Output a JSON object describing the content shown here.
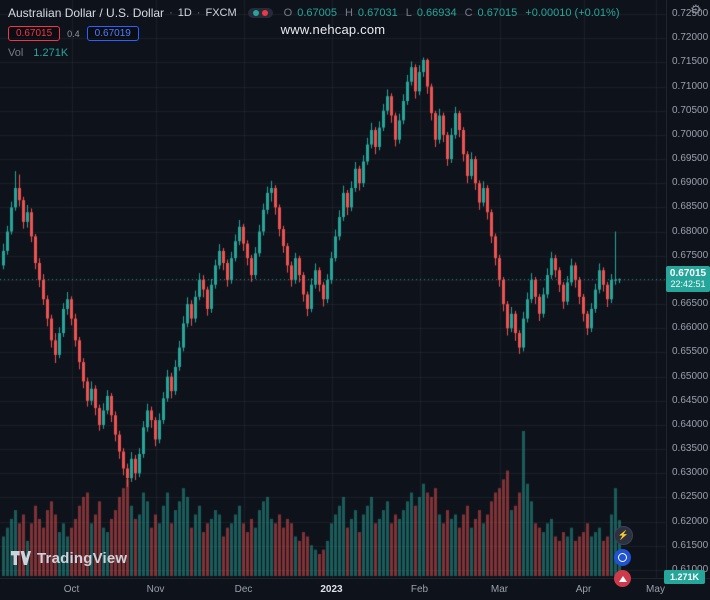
{
  "header": {
    "symbol_title": "Australian Dollar / U.S. Dollar",
    "separator": "·",
    "timeframe": "1D",
    "exchange": "FXCM",
    "ohlc": {
      "o_label": "O",
      "o": "0.67005",
      "h_label": "H",
      "h": "0.67031",
      "l_label": "L",
      "l": "0.66934",
      "c_label": "C",
      "c": "0.67015",
      "change": "+0.00010 (+0.01%)"
    },
    "sell_price": "0.67015",
    "spread": "0.4",
    "buy_price": "0.67019",
    "vol_label": "Vol",
    "vol_value": "1.271K"
  },
  "watermark": "www.nehcap.com",
  "price_tag": {
    "price": "0.67015",
    "countdown": "22:42:51"
  },
  "volume_tag": "1.271K",
  "logo_text": "TradingView",
  "colors": {
    "background": "#0e121b",
    "up": "#26a69a",
    "down": "#ef5350",
    "grid": "rgba(255,255,255,0.05)",
    "last_price_line": "rgba(38,166,154,0.8)",
    "sell_red": "#f23645",
    "buy_blue": "#2962ff",
    "text_primary": "#d1d4dc",
    "text_secondary": "#9598a1"
  },
  "axes": {
    "price_ticks": [
      "0.72500",
      "0.72000",
      "0.71500",
      "0.71000",
      "0.70500",
      "0.70000",
      "0.69500",
      "0.69000",
      "0.68500",
      "0.68000",
      "0.67500",
      "0.67000",
      "0.66500",
      "0.66000",
      "0.65500",
      "0.65000",
      "0.64500",
      "0.64000",
      "0.63500",
      "0.63000",
      "0.62500",
      "0.62000",
      "0.61500",
      "0.61000"
    ],
    "time_labels": [
      {
        "label": "Oct",
        "i": 17,
        "emphasis": false
      },
      {
        "label": "Nov",
        "i": 38,
        "emphasis": false
      },
      {
        "label": "Dec",
        "i": 60,
        "emphasis": false
      },
      {
        "label": "2023",
        "i": 82,
        "emphasis": true
      },
      {
        "label": "Feb",
        "i": 104,
        "emphasis": false
      },
      {
        "label": "Mar",
        "i": 124,
        "emphasis": false
      },
      {
        "label": "Apr",
        "i": 145,
        "emphasis": false
      },
      {
        "label": "May",
        "i": 163,
        "emphasis": false
      }
    ]
  },
  "chart_data": {
    "type": "candlestick",
    "title": "Australian Dollar / U.S. Dollar · 1D · FXCM",
    "visible_price_range": [
      0.61,
      0.725
    ],
    "price_tick_step": 0.005,
    "last_price": 0.67015,
    "volume_units": "K",
    "volume_max_scale": 3.3,
    "candles_format": [
      "open",
      "high",
      "low",
      "close",
      "volume"
    ],
    "candles": [
      [
        0.673,
        0.6775,
        0.6722,
        0.676,
        0.9
      ],
      [
        0.676,
        0.6812,
        0.6752,
        0.68,
        1.1
      ],
      [
        0.68,
        0.6862,
        0.6794,
        0.685,
        1.3
      ],
      [
        0.685,
        0.6925,
        0.6843,
        0.689,
        1.5
      ],
      [
        0.689,
        0.6918,
        0.6852,
        0.6865,
        1.2
      ],
      [
        0.6865,
        0.6872,
        0.6806,
        0.682,
        1.4
      ],
      [
        0.682,
        0.6855,
        0.6808,
        0.684,
        0.8
      ],
      [
        0.684,
        0.6848,
        0.6778,
        0.679,
        1.2
      ],
      [
        0.679,
        0.6795,
        0.6722,
        0.6735,
        1.6
      ],
      [
        0.6735,
        0.6745,
        0.6685,
        0.67,
        1.3
      ],
      [
        0.67,
        0.6712,
        0.6648,
        0.666,
        1.1
      ],
      [
        0.666,
        0.6668,
        0.6604,
        0.662,
        1.5
      ],
      [
        0.662,
        0.6628,
        0.656,
        0.6575,
        1.7
      ],
      [
        0.6575,
        0.659,
        0.6528,
        0.6545,
        1.4
      ],
      [
        0.6545,
        0.6602,
        0.6538,
        0.659,
        1.0
      ],
      [
        0.659,
        0.6652,
        0.6582,
        0.664,
        1.2
      ],
      [
        0.664,
        0.6675,
        0.6628,
        0.666,
        0.9
      ],
      [
        0.666,
        0.6666,
        0.6606,
        0.662,
        1.1
      ],
      [
        0.662,
        0.663,
        0.6562,
        0.6575,
        1.3
      ],
      [
        0.6575,
        0.6582,
        0.6515,
        0.653,
        1.6
      ],
      [
        0.653,
        0.6538,
        0.6476,
        0.649,
        1.8
      ],
      [
        0.649,
        0.6498,
        0.6438,
        0.645,
        1.9
      ],
      [
        0.645,
        0.649,
        0.6441,
        0.6475,
        1.2
      ],
      [
        0.6475,
        0.6482,
        0.642,
        0.6435,
        1.4
      ],
      [
        0.6435,
        0.6442,
        0.6388,
        0.64,
        1.7
      ],
      [
        0.64,
        0.6445,
        0.6392,
        0.643,
        1.1
      ],
      [
        0.643,
        0.6472,
        0.6422,
        0.646,
        1.0
      ],
      [
        0.646,
        0.6466,
        0.6406,
        0.642,
        1.3
      ],
      [
        0.642,
        0.6428,
        0.6366,
        0.638,
        1.5
      ],
      [
        0.638,
        0.6388,
        0.633,
        0.6345,
        1.8
      ],
      [
        0.6345,
        0.6352,
        0.6296,
        0.631,
        2.0
      ],
      [
        0.631,
        0.632,
        0.6272,
        0.629,
        2.2
      ],
      [
        0.629,
        0.6344,
        0.6282,
        0.633,
        1.6
      ],
      [
        0.633,
        0.6338,
        0.6286,
        0.63,
        1.3
      ],
      [
        0.63,
        0.6352,
        0.6292,
        0.634,
        1.4
      ],
      [
        0.634,
        0.6408,
        0.6332,
        0.6395,
        1.9
      ],
      [
        0.6395,
        0.6444,
        0.6386,
        0.643,
        1.7
      ],
      [
        0.643,
        0.6438,
        0.6394,
        0.641,
        1.1
      ],
      [
        0.641,
        0.6416,
        0.6356,
        0.637,
        1.4
      ],
      [
        0.637,
        0.6424,
        0.6362,
        0.641,
        1.2
      ],
      [
        0.641,
        0.6468,
        0.6402,
        0.6455,
        1.6
      ],
      [
        0.6455,
        0.6514,
        0.6448,
        0.65,
        1.9
      ],
      [
        0.65,
        0.6508,
        0.6455,
        0.647,
        1.2
      ],
      [
        0.647,
        0.6534,
        0.6462,
        0.652,
        1.5
      ],
      [
        0.652,
        0.6574,
        0.6512,
        0.656,
        1.7
      ],
      [
        0.656,
        0.6625,
        0.6552,
        0.661,
        2.0
      ],
      [
        0.661,
        0.6664,
        0.6602,
        0.665,
        1.8
      ],
      [
        0.665,
        0.6658,
        0.6605,
        0.662,
        1.1
      ],
      [
        0.662,
        0.6678,
        0.6612,
        0.6665,
        1.4
      ],
      [
        0.6665,
        0.6714,
        0.6658,
        0.67,
        1.6
      ],
      [
        0.67,
        0.671,
        0.6664,
        0.668,
        1.0
      ],
      [
        0.668,
        0.6686,
        0.6626,
        0.664,
        1.2
      ],
      [
        0.664,
        0.6702,
        0.6632,
        0.669,
        1.3
      ],
      [
        0.669,
        0.6742,
        0.6682,
        0.673,
        1.5
      ],
      [
        0.673,
        0.6774,
        0.6722,
        0.676,
        1.4
      ],
      [
        0.676,
        0.6766,
        0.672,
        0.6735,
        0.9
      ],
      [
        0.6735,
        0.6742,
        0.6686,
        0.67,
        1.1
      ],
      [
        0.67,
        0.6758,
        0.6692,
        0.6745,
        1.2
      ],
      [
        0.6745,
        0.6794,
        0.6738,
        0.678,
        1.4
      ],
      [
        0.678,
        0.6824,
        0.6772,
        0.681,
        1.6
      ],
      [
        0.681,
        0.6816,
        0.676,
        0.6775,
        1.2
      ],
      [
        0.6775,
        0.6782,
        0.673,
        0.6745,
        1.0
      ],
      [
        0.6745,
        0.6752,
        0.6696,
        0.671,
        1.3
      ],
      [
        0.671,
        0.6768,
        0.6702,
        0.6755,
        1.1
      ],
      [
        0.6755,
        0.6814,
        0.6748,
        0.68,
        1.5
      ],
      [
        0.68,
        0.6858,
        0.6792,
        0.6845,
        1.7
      ],
      [
        0.6845,
        0.6893,
        0.6836,
        0.688,
        1.8
      ],
      [
        0.688,
        0.6905,
        0.6862,
        0.689,
        1.3
      ],
      [
        0.689,
        0.6896,
        0.6835,
        0.685,
        1.2
      ],
      [
        0.685,
        0.6856,
        0.679,
        0.6805,
        1.4
      ],
      [
        0.6805,
        0.6812,
        0.6756,
        0.677,
        1.1
      ],
      [
        0.677,
        0.6776,
        0.6715,
        0.673,
        1.3
      ],
      [
        0.673,
        0.6738,
        0.6686,
        0.67,
        1.2
      ],
      [
        0.67,
        0.6756,
        0.6692,
        0.6745,
        0.9
      ],
      [
        0.6745,
        0.675,
        0.6695,
        0.671,
        0.8
      ],
      [
        0.671,
        0.6716,
        0.6655,
        0.667,
        1.0
      ],
      [
        0.667,
        0.6676,
        0.6625,
        0.664,
        0.9
      ],
      [
        0.664,
        0.6703,
        0.6633,
        0.669,
        0.7
      ],
      [
        0.669,
        0.6734,
        0.6682,
        0.672,
        0.6
      ],
      [
        0.672,
        0.6726,
        0.6676,
        0.669,
        0.5
      ],
      [
        0.669,
        0.6696,
        0.6645,
        0.666,
        0.6
      ],
      [
        0.666,
        0.6712,
        0.6652,
        0.67,
        0.8
      ],
      [
        0.67,
        0.6758,
        0.6692,
        0.6745,
        1.2
      ],
      [
        0.6745,
        0.6804,
        0.6738,
        0.679,
        1.4
      ],
      [
        0.679,
        0.6844,
        0.6782,
        0.683,
        1.6
      ],
      [
        0.683,
        0.6895,
        0.6822,
        0.688,
        1.8
      ],
      [
        0.688,
        0.6886,
        0.6834,
        0.685,
        1.1
      ],
      [
        0.685,
        0.6904,
        0.6842,
        0.689,
        1.3
      ],
      [
        0.689,
        0.6944,
        0.6882,
        0.693,
        1.5
      ],
      [
        0.693,
        0.6936,
        0.6885,
        0.69,
        1.0
      ],
      [
        0.69,
        0.6958,
        0.6892,
        0.6945,
        1.4
      ],
      [
        0.6945,
        0.6994,
        0.6938,
        0.698,
        1.6
      ],
      [
        0.698,
        0.7025,
        0.6972,
        0.701,
        1.8
      ],
      [
        0.701,
        0.7016,
        0.696,
        0.6975,
        1.2
      ],
      [
        0.6975,
        0.7028,
        0.6968,
        0.7015,
        1.3
      ],
      [
        0.7015,
        0.7064,
        0.7008,
        0.705,
        1.5
      ],
      [
        0.705,
        0.7094,
        0.7042,
        0.708,
        1.7
      ],
      [
        0.708,
        0.7086,
        0.7025,
        0.704,
        1.2
      ],
      [
        0.704,
        0.7046,
        0.6976,
        0.699,
        1.4
      ],
      [
        0.699,
        0.7044,
        0.6982,
        0.703,
        1.3
      ],
      [
        0.703,
        0.7084,
        0.7022,
        0.707,
        1.5
      ],
      [
        0.707,
        0.7124,
        0.7062,
        0.711,
        1.7
      ],
      [
        0.711,
        0.7152,
        0.7102,
        0.714,
        1.9
      ],
      [
        0.714,
        0.7146,
        0.7075,
        0.709,
        1.6
      ],
      [
        0.709,
        0.7144,
        0.7082,
        0.713,
        1.8
      ],
      [
        0.713,
        0.716,
        0.712,
        0.7155,
        2.1
      ],
      [
        0.7155,
        0.7158,
        0.7085,
        0.71,
        1.9
      ],
      [
        0.71,
        0.7106,
        0.703,
        0.7045,
        1.8
      ],
      [
        0.7045,
        0.705,
        0.6975,
        0.699,
        2.0
      ],
      [
        0.699,
        0.7054,
        0.6982,
        0.704,
        1.4
      ],
      [
        0.704,
        0.7046,
        0.6985,
        0.7,
        1.2
      ],
      [
        0.7,
        0.7006,
        0.6936,
        0.695,
        1.5
      ],
      [
        0.695,
        0.7014,
        0.6942,
        0.7,
        1.3
      ],
      [
        0.7,
        0.7058,
        0.6992,
        0.7045,
        1.4
      ],
      [
        0.7045,
        0.705,
        0.6995,
        0.701,
        1.1
      ],
      [
        0.701,
        0.7016,
        0.6945,
        0.696,
        1.4
      ],
      [
        0.696,
        0.6966,
        0.69,
        0.6915,
        1.6
      ],
      [
        0.6915,
        0.6964,
        0.6908,
        0.695,
        1.1
      ],
      [
        0.695,
        0.6956,
        0.6886,
        0.69,
        1.3
      ],
      [
        0.69,
        0.6906,
        0.6845,
        0.686,
        1.5
      ],
      [
        0.686,
        0.6904,
        0.6852,
        0.689,
        1.2
      ],
      [
        0.689,
        0.6896,
        0.6825,
        0.684,
        1.4
      ],
      [
        0.684,
        0.6846,
        0.6776,
        0.679,
        1.7
      ],
      [
        0.679,
        0.6796,
        0.673,
        0.6745,
        1.9
      ],
      [
        0.6745,
        0.6752,
        0.6686,
        0.67,
        2.0
      ],
      [
        0.67,
        0.6706,
        0.6635,
        0.665,
        2.2
      ],
      [
        0.665,
        0.6656,
        0.6585,
        0.66,
        2.4
      ],
      [
        0.66,
        0.6644,
        0.6592,
        0.663,
        1.5
      ],
      [
        0.663,
        0.6636,
        0.6574,
        0.659,
        1.6
      ],
      [
        0.659,
        0.6596,
        0.6547,
        0.656,
        1.9
      ],
      [
        0.656,
        0.6634,
        0.6552,
        0.662,
        3.3
      ],
      [
        0.662,
        0.6674,
        0.6612,
        0.666,
        2.1
      ],
      [
        0.666,
        0.6714,
        0.6652,
        0.67,
        1.7
      ],
      [
        0.67,
        0.6706,
        0.665,
        0.6665,
        1.2
      ],
      [
        0.6665,
        0.6671,
        0.6615,
        0.663,
        1.1
      ],
      [
        0.663,
        0.6684,
        0.6622,
        0.667,
        1.0
      ],
      [
        0.667,
        0.6724,
        0.6662,
        0.671,
        1.2
      ],
      [
        0.671,
        0.6758,
        0.6702,
        0.6745,
        1.3
      ],
      [
        0.6745,
        0.6752,
        0.6705,
        0.672,
        0.9
      ],
      [
        0.672,
        0.6726,
        0.6675,
        0.669,
        0.8
      ],
      [
        0.669,
        0.6696,
        0.664,
        0.6655,
        1.0
      ],
      [
        0.6655,
        0.6708,
        0.6648,
        0.6695,
        0.9
      ],
      [
        0.6695,
        0.6744,
        0.6688,
        0.673,
        1.1
      ],
      [
        0.673,
        0.6736,
        0.6684,
        0.67,
        0.8
      ],
      [
        0.67,
        0.6706,
        0.665,
        0.6665,
        0.9
      ],
      [
        0.6665,
        0.6671,
        0.6614,
        0.663,
        1.0
      ],
      [
        0.663,
        0.6636,
        0.6586,
        0.66,
        1.2
      ],
      [
        0.66,
        0.6652,
        0.6592,
        0.664,
        0.9
      ],
      [
        0.664,
        0.6692,
        0.6632,
        0.668,
        1.0
      ],
      [
        0.668,
        0.6734,
        0.6672,
        0.672,
        1.1
      ],
      [
        0.672,
        0.6726,
        0.6676,
        0.669,
        0.8
      ],
      [
        0.669,
        0.6696,
        0.6644,
        0.666,
        0.9
      ],
      [
        0.666,
        0.6712,
        0.6652,
        0.67,
        1.4
      ],
      [
        0.67,
        0.68,
        0.669,
        0.67005,
        2.0
      ],
      [
        0.67005,
        0.67031,
        0.66934,
        0.67015,
        1.271
      ]
    ]
  }
}
